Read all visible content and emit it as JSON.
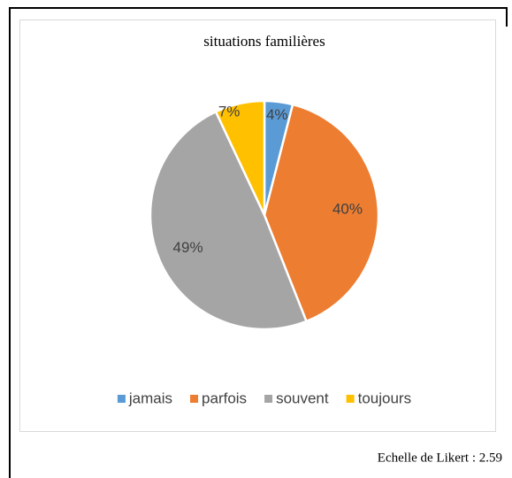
{
  "chart_data": {
    "type": "pie",
    "title": "situations familières",
    "categories": [
      "jamais",
      "parfois",
      "souvent",
      "toujours"
    ],
    "values": [
      4,
      40,
      49,
      7
    ],
    "value_labels": [
      "4%",
      "40%",
      "49%",
      "7%"
    ],
    "colors": [
      "#5b9bd5",
      "#ed7d31",
      "#a5a5a5",
      "#ffc000"
    ],
    "legend": "bottom"
  },
  "caption": "Echelle de Likert : 2.59"
}
